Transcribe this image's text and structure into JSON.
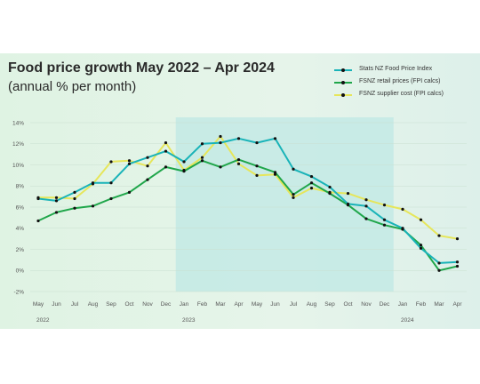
{
  "title": "Food price growth May 2022 – Apr 2024",
  "subtitle": "(annual % per month)",
  "legend": [
    {
      "label": "Stats NZ Food Price Index",
      "color": "#19b3b8"
    },
    {
      "label": "FSNZ retail prices (FPI calcs)",
      "color": "#1fa64a"
    },
    {
      "label": "FSNZ supplier cost (FPI calcs)",
      "color": "#e6e65a"
    }
  ],
  "chart_data": {
    "type": "line",
    "categories": [
      "May",
      "Jun",
      "Jul",
      "Aug",
      "Sep",
      "Oct",
      "Nov",
      "Dec",
      "Jan",
      "Feb",
      "Mar",
      "Apr",
      "May",
      "Jun",
      "Jul",
      "Aug",
      "Sep",
      "Oct",
      "Nov",
      "Dec",
      "Jan",
      "Feb",
      "Mar",
      "Apr"
    ],
    "year_labels": [
      {
        "label": "2022",
        "index": 0
      },
      {
        "label": "2023",
        "index": 8
      },
      {
        "label": "2024",
        "index": 20
      }
    ],
    "y_ticks": [
      "-2%",
      "0%",
      "2%",
      "4%",
      "6%",
      "8%",
      "10%",
      "12%",
      "14%"
    ],
    "ylim": [
      -2,
      14
    ],
    "highlight_range": [
      8,
      20
    ],
    "series": [
      {
        "name": "Stats NZ Food Price Index",
        "color": "#19b3b8",
        "values": [
          6.8,
          6.6,
          7.4,
          8.3,
          8.3,
          10.1,
          10.7,
          11.3,
          10.3,
          12.0,
          12.1,
          12.5,
          12.1,
          12.5,
          9.6,
          8.9,
          7.9,
          6.3,
          6.1,
          4.8,
          4.0,
          2.1,
          0.7,
          0.8
        ]
      },
      {
        "name": "FSNZ retail prices (FPI calcs)",
        "color": "#1fa64a",
        "values": [
          4.7,
          5.5,
          5.9,
          6.1,
          6.8,
          7.4,
          8.6,
          9.8,
          9.4,
          10.4,
          9.8,
          10.5,
          9.9,
          9.3,
          7.2,
          8.3,
          7.3,
          6.2,
          4.9,
          4.3,
          3.9,
          2.4,
          0.0,
          0.4
        ]
      },
      {
        "name": "FSNZ supplier cost (FPI calcs)",
        "color": "#e6e65a",
        "values": [
          6.9,
          6.9,
          6.8,
          8.2,
          10.3,
          10.4,
          9.9,
          12.1,
          9.5,
          10.7,
          12.7,
          10.1,
          9.0,
          9.1,
          6.9,
          7.8,
          7.4,
          7.3,
          6.7,
          6.2,
          5.8,
          4.8,
          3.3,
          3.0
        ]
      }
    ]
  }
}
